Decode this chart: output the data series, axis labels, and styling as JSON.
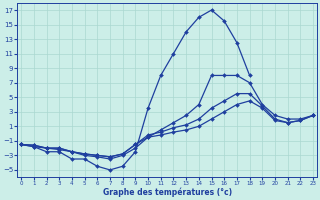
{
  "xlabel": "Graphe des températures (°c)",
  "hours": [
    0,
    1,
    2,
    3,
    4,
    5,
    6,
    7,
    8,
    9,
    10,
    11,
    12,
    13,
    14,
    15,
    16,
    17,
    18,
    19,
    20,
    21,
    22,
    23
  ],
  "line1": [
    -1.5,
    -1.8,
    -2.5,
    -2.5,
    -3.5,
    -3.5,
    -4.5,
    -5.0,
    -4.5,
    -2.5,
    3.5,
    8.0,
    11.0,
    14.0,
    16.0,
    17.0,
    15.5,
    12.5,
    8.0,
    null,
    null,
    null,
    null,
    null
  ],
  "line2": [
    -1.5,
    -1.8,
    -2.0,
    -2.2,
    -2.5,
    -3.0,
    -3.2,
    -3.5,
    -3.0,
    -2.0,
    -0.5,
    0.5,
    1.5,
    2.5,
    4.0,
    8.0,
    8.0,
    8.0,
    7.0,
    4.0,
    2.5,
    2.0,
    2.0,
    2.5
  ],
  "line3": [
    -1.5,
    -1.6,
    -2.0,
    -2.0,
    -2.5,
    -2.8,
    -3.0,
    -3.2,
    -2.8,
    -1.5,
    -0.2,
    0.2,
    0.8,
    1.2,
    2.0,
    3.5,
    4.5,
    5.5,
    5.5,
    3.8,
    2.0,
    1.5,
    1.8,
    2.5
  ],
  "line4": [
    -1.5,
    -1.6,
    -2.0,
    -2.0,
    -2.5,
    -2.8,
    -3.0,
    -3.2,
    -2.8,
    -1.5,
    -0.5,
    -0.2,
    0.2,
    0.5,
    1.0,
    2.0,
    3.0,
    4.0,
    4.5,
    3.5,
    1.8,
    1.5,
    1.8,
    2.5
  ],
  "line_color": "#1f3f9f",
  "bg_color": "#cceee8",
  "grid_color": "#aad8d0",
  "marker": "D",
  "markersize": 2.0,
  "linewidth": 0.9,
  "ylim": [
    -6,
    18
  ],
  "yticks": [
    -5,
    -3,
    -1,
    1,
    3,
    5,
    7,
    9,
    11,
    13,
    15,
    17
  ],
  "xlim": [
    -0.3,
    23.3
  ],
  "xticks": [
    0,
    1,
    2,
    3,
    4,
    5,
    6,
    7,
    8,
    9,
    10,
    11,
    12,
    13,
    14,
    15,
    16,
    17,
    18,
    19,
    20,
    21,
    22,
    23
  ],
  "xlabel_fontsize": 5.5,
  "xlabel_bold": true,
  "tick_fontsize_x": 4.0,
  "tick_fontsize_y": 5.0
}
